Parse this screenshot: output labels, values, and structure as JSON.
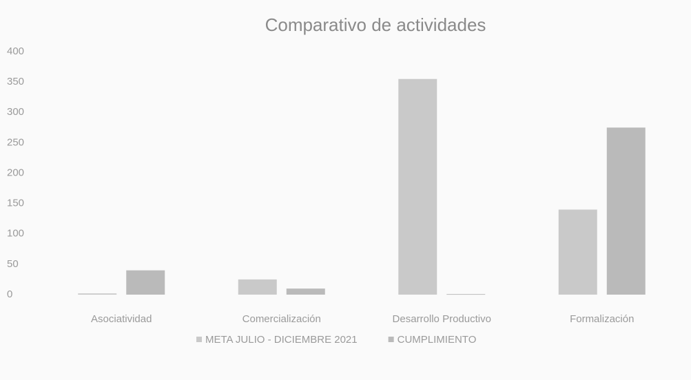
{
  "chart_data": {
    "type": "bar",
    "title": "Comparativo de actividades",
    "categories": [
      "Asociatividad",
      "Comercialización",
      "Desarrollo Productivo",
      "Formalización"
    ],
    "series": [
      {
        "name": "META JULIO - DICIEMBRE 2021",
        "color": "#c9c9c9",
        "values": [
          2,
          25,
          355,
          140
        ]
      },
      {
        "name": "CUMPLIMIENTO",
        "color": "#bababa",
        "values": [
          40,
          10,
          1,
          275
        ]
      }
    ],
    "ylim": [
      0,
      400
    ],
    "yticks": [
      0,
      50,
      100,
      150,
      200,
      250,
      300,
      350,
      400
    ],
    "grid": false,
    "legend": "bottom"
  }
}
